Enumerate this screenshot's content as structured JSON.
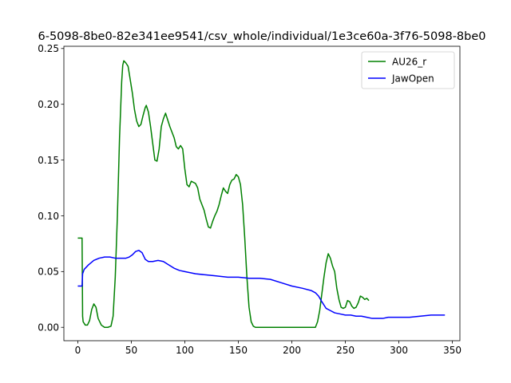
{
  "chart_data": {
    "type": "line",
    "title": "6-5098-8be0-82e341ee9541/csv_whole/individual/1e3ce60a-3f76-5098-8be0",
    "xlabel": "",
    "ylabel": "",
    "xlim": [
      -13,
      357
    ],
    "ylim": [
      -0.012,
      0.252
    ],
    "xticks": [
      0,
      50,
      100,
      150,
      200,
      250,
      300,
      350
    ],
    "yticks": [
      0.0,
      0.05,
      0.1,
      0.15,
      0.2,
      0.25
    ],
    "ytick_labels": [
      "0.00",
      "0.05",
      "0.10",
      "0.15",
      "0.20",
      "0.25"
    ],
    "grid": false,
    "legend_position": "top-right",
    "series": [
      {
        "name": "AU26_r",
        "color": "#008000",
        "points": [
          [
            0,
            0.08
          ],
          [
            4,
            0.08
          ],
          [
            4.5,
            0.01
          ],
          [
            5,
            0.005
          ],
          [
            7,
            0.002
          ],
          [
            9,
            0.002
          ],
          [
            11,
            0.006
          ],
          [
            13,
            0.016
          ],
          [
            15,
            0.021
          ],
          [
            17,
            0.018
          ],
          [
            19,
            0.008
          ],
          [
            22,
            0.002
          ],
          [
            25,
            0.0
          ],
          [
            28,
            0.0
          ],
          [
            31,
            0.001
          ],
          [
            33,
            0.01
          ],
          [
            35,
            0.045
          ],
          [
            37,
            0.1
          ],
          [
            39,
            0.17
          ],
          [
            41,
            0.22
          ],
          [
            42,
            0.235
          ],
          [
            43,
            0.239
          ],
          [
            45,
            0.237
          ],
          [
            47,
            0.234
          ],
          [
            49,
            0.222
          ],
          [
            51,
            0.21
          ],
          [
            53,
            0.195
          ],
          [
            55,
            0.185
          ],
          [
            57,
            0.18
          ],
          [
            59,
            0.182
          ],
          [
            61,
            0.19
          ],
          [
            63,
            0.197
          ],
          [
            64,
            0.199
          ],
          [
            66,
            0.193
          ],
          [
            68,
            0.18
          ],
          [
            70,
            0.165
          ],
          [
            72,
            0.15
          ],
          [
            74,
            0.149
          ],
          [
            76,
            0.16
          ],
          [
            78,
            0.18
          ],
          [
            80,
            0.187
          ],
          [
            82,
            0.192
          ],
          [
            84,
            0.186
          ],
          [
            86,
            0.18
          ],
          [
            88,
            0.175
          ],
          [
            90,
            0.17
          ],
          [
            92,
            0.162
          ],
          [
            94,
            0.16
          ],
          [
            96,
            0.163
          ],
          [
            98,
            0.16
          ],
          [
            100,
            0.142
          ],
          [
            102,
            0.128
          ],
          [
            104,
            0.126
          ],
          [
            106,
            0.131
          ],
          [
            108,
            0.13
          ],
          [
            110,
            0.129
          ],
          [
            112,
            0.125
          ],
          [
            114,
            0.115
          ],
          [
            116,
            0.11
          ],
          [
            118,
            0.105
          ],
          [
            120,
            0.097
          ],
          [
            122,
            0.09
          ],
          [
            124,
            0.089
          ],
          [
            126,
            0.095
          ],
          [
            128,
            0.1
          ],
          [
            130,
            0.104
          ],
          [
            132,
            0.11
          ],
          [
            134,
            0.118
          ],
          [
            136,
            0.125
          ],
          [
            138,
            0.122
          ],
          [
            140,
            0.12
          ],
          [
            142,
            0.128
          ],
          [
            144,
            0.132
          ],
          [
            146,
            0.133
          ],
          [
            148,
            0.137
          ],
          [
            150,
            0.135
          ],
          [
            152,
            0.128
          ],
          [
            154,
            0.11
          ],
          [
            156,
            0.08
          ],
          [
            158,
            0.045
          ],
          [
            160,
            0.018
          ],
          [
            162,
            0.005
          ],
          [
            164,
            0.001
          ],
          [
            166,
            0.0
          ],
          [
            180,
            0.0
          ],
          [
            200,
            0.0
          ],
          [
            215,
            0.0
          ],
          [
            222,
            0.0
          ],
          [
            224,
            0.005
          ],
          [
            226,
            0.015
          ],
          [
            228,
            0.03
          ],
          [
            230,
            0.045
          ],
          [
            232,
            0.058
          ],
          [
            234,
            0.066
          ],
          [
            236,
            0.062
          ],
          [
            238,
            0.055
          ],
          [
            240,
            0.05
          ],
          [
            242,
            0.035
          ],
          [
            244,
            0.025
          ],
          [
            246,
            0.018
          ],
          [
            248,
            0.017
          ],
          [
            250,
            0.018
          ],
          [
            252,
            0.024
          ],
          [
            254,
            0.023
          ],
          [
            256,
            0.019
          ],
          [
            258,
            0.017
          ],
          [
            260,
            0.018
          ],
          [
            262,
            0.022
          ],
          [
            264,
            0.028
          ],
          [
            266,
            0.027
          ],
          [
            268,
            0.025
          ],
          [
            270,
            0.026
          ],
          [
            272,
            0.024
          ]
        ]
      },
      {
        "name": "JawOpen",
        "color": "#0000ff",
        "points": [
          [
            0,
            0.037
          ],
          [
            3,
            0.037
          ],
          [
            4,
            0.037
          ],
          [
            4.5,
            0.048
          ],
          [
            6,
            0.052
          ],
          [
            10,
            0.056
          ],
          [
            15,
            0.06
          ],
          [
            20,
            0.062
          ],
          [
            25,
            0.063
          ],
          [
            30,
            0.063
          ],
          [
            35,
            0.062
          ],
          [
            40,
            0.062
          ],
          [
            45,
            0.062
          ],
          [
            48,
            0.063
          ],
          [
            51,
            0.065
          ],
          [
            54,
            0.068
          ],
          [
            57,
            0.069
          ],
          [
            60,
            0.067
          ],
          [
            63,
            0.061
          ],
          [
            66,
            0.059
          ],
          [
            70,
            0.059
          ],
          [
            75,
            0.06
          ],
          [
            80,
            0.059
          ],
          [
            85,
            0.056
          ],
          [
            90,
            0.053
          ],
          [
            95,
            0.051
          ],
          [
            100,
            0.05
          ],
          [
            110,
            0.048
          ],
          [
            120,
            0.047
          ],
          [
            130,
            0.046
          ],
          [
            140,
            0.045
          ],
          [
            150,
            0.045
          ],
          [
            160,
            0.044
          ],
          [
            170,
            0.044
          ],
          [
            180,
            0.043
          ],
          [
            190,
            0.04
          ],
          [
            200,
            0.037
          ],
          [
            210,
            0.035
          ],
          [
            218,
            0.033
          ],
          [
            222,
            0.031
          ],
          [
            225,
            0.028
          ],
          [
            228,
            0.023
          ],
          [
            232,
            0.017
          ],
          [
            236,
            0.015
          ],
          [
            240,
            0.013
          ],
          [
            245,
            0.012
          ],
          [
            250,
            0.011
          ],
          [
            255,
            0.011
          ],
          [
            260,
            0.01
          ],
          [
            265,
            0.01
          ],
          [
            270,
            0.009
          ],
          [
            275,
            0.008
          ],
          [
            280,
            0.008
          ],
          [
            285,
            0.008
          ],
          [
            290,
            0.009
          ],
          [
            300,
            0.009
          ],
          [
            310,
            0.009
          ],
          [
            320,
            0.01
          ],
          [
            330,
            0.011
          ],
          [
            340,
            0.011
          ],
          [
            343,
            0.011
          ]
        ]
      }
    ]
  }
}
